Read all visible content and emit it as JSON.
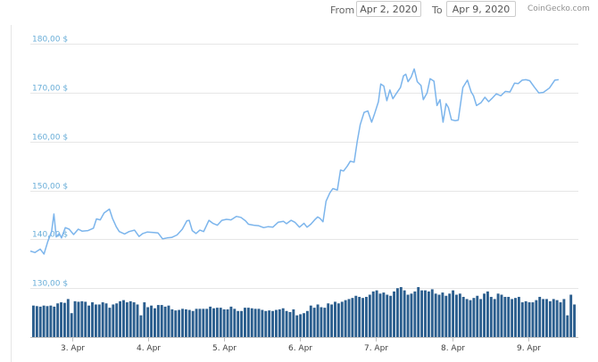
{
  "range": {
    "from_label": "From",
    "from_value": "Apr 2, 2020",
    "to_label": "To",
    "to_value": "Apr 9, 2020"
  },
  "credit": "CoinGecko.com",
  "colors": {
    "price_line": "#7cb5ec",
    "volume_bar": "#2b5e8e",
    "grid": "#e6e6e6",
    "y_label": "#6aaed8"
  },
  "chart_data": {
    "type": "line",
    "title": "",
    "xlabel": "",
    "ylabel": "",
    "x_range": [
      2.45,
      9.66
    ],
    "ylim": [
      120,
      185
    ],
    "y_ticks": [
      {
        "value": 130,
        "label": "130,00 $"
      },
      {
        "value": 140,
        "label": "140,00 $"
      },
      {
        "value": 150,
        "label": "150,00 $"
      },
      {
        "value": 160,
        "label": "160,00 $"
      },
      {
        "value": 170,
        "label": "170,00 $"
      },
      {
        "value": 180,
        "label": "180,00 $"
      }
    ],
    "x_ticks": [
      {
        "value": 3,
        "label": "3. Apr"
      },
      {
        "value": 4,
        "label": "4. Apr"
      },
      {
        "value": 5,
        "label": "5. Apr"
      },
      {
        "value": 6,
        "label": "6. Apr"
      },
      {
        "value": 7,
        "label": "7. Apr"
      },
      {
        "value": 8,
        "label": "8. Apr"
      },
      {
        "value": 9,
        "label": "9. Apr"
      }
    ],
    "grid": true,
    "series": [
      {
        "values": [
          [
            2.45,
            137.6
          ],
          [
            2.51,
            137.3
          ],
          [
            2.58,
            138.0
          ],
          [
            2.63,
            137.0
          ],
          [
            2.68,
            139.6
          ],
          [
            2.73,
            141.6
          ],
          [
            2.76,
            145.2
          ],
          [
            2.79,
            140.5
          ],
          [
            2.83,
            141.2
          ],
          [
            2.86,
            140.3
          ],
          [
            2.91,
            142.4
          ],
          [
            2.96,
            142.1
          ],
          [
            3.02,
            141.0
          ],
          [
            3.08,
            142.1
          ],
          [
            3.13,
            141.7
          ],
          [
            3.21,
            141.8
          ],
          [
            3.28,
            142.3
          ],
          [
            3.32,
            144.2
          ],
          [
            3.37,
            144.0
          ],
          [
            3.42,
            145.4
          ],
          [
            3.49,
            146.2
          ],
          [
            3.53,
            144.3
          ],
          [
            3.58,
            142.6
          ],
          [
            3.62,
            141.6
          ],
          [
            3.69,
            141.1
          ],
          [
            3.75,
            141.6
          ],
          [
            3.82,
            141.9
          ],
          [
            3.88,
            140.6
          ],
          [
            3.93,
            141.2
          ],
          [
            3.99,
            141.5
          ],
          [
            4.07,
            141.4
          ],
          [
            4.13,
            141.3
          ],
          [
            4.19,
            140.1
          ],
          [
            4.25,
            140.3
          ],
          [
            4.31,
            140.4
          ],
          [
            4.38,
            140.9
          ],
          [
            4.45,
            142.1
          ],
          [
            4.51,
            143.8
          ],
          [
            4.54,
            143.9
          ],
          [
            4.58,
            141.8
          ],
          [
            4.63,
            141.2
          ],
          [
            4.68,
            141.9
          ],
          [
            4.73,
            141.6
          ],
          [
            4.8,
            143.9
          ],
          [
            4.85,
            143.3
          ],
          [
            4.91,
            142.9
          ],
          [
            4.97,
            143.9
          ],
          [
            5.03,
            144.1
          ],
          [
            5.09,
            144.0
          ],
          [
            5.16,
            144.7
          ],
          [
            5.22,
            144.5
          ],
          [
            5.28,
            143.8
          ],
          [
            5.32,
            143.1
          ],
          [
            5.39,
            142.9
          ],
          [
            5.45,
            142.8
          ],
          [
            5.52,
            142.4
          ],
          [
            5.58,
            142.6
          ],
          [
            5.64,
            142.5
          ],
          [
            5.71,
            143.5
          ],
          [
            5.78,
            143.7
          ],
          [
            5.82,
            143.2
          ],
          [
            5.88,
            143.9
          ],
          [
            5.93,
            143.5
          ],
          [
            5.99,
            142.5
          ],
          [
            6.05,
            143.3
          ],
          [
            6.09,
            142.5
          ],
          [
            6.14,
            143.1
          ],
          [
            6.19,
            144.0
          ],
          [
            6.23,
            144.6
          ],
          [
            6.26,
            144.3
          ],
          [
            6.3,
            143.6
          ],
          [
            6.34,
            147.8
          ],
          [
            6.39,
            149.5
          ],
          [
            6.43,
            150.4
          ],
          [
            6.49,
            150.1
          ],
          [
            6.53,
            154.2
          ],
          [
            6.57,
            154.0
          ],
          [
            6.62,
            155.0
          ],
          [
            6.66,
            156.0
          ],
          [
            6.71,
            155.8
          ],
          [
            6.75,
            160.0
          ],
          [
            6.79,
            163.5
          ],
          [
            6.84,
            166.0
          ],
          [
            6.89,
            166.3
          ],
          [
            6.94,
            164.0
          ],
          [
            6.98,
            165.8
          ],
          [
            7.03,
            168.2
          ],
          [
            7.06,
            171.8
          ],
          [
            7.1,
            171.4
          ],
          [
            7.14,
            168.4
          ],
          [
            7.18,
            170.6
          ],
          [
            7.22,
            168.8
          ],
          [
            7.27,
            170.0
          ],
          [
            7.32,
            171.1
          ],
          [
            7.36,
            173.5
          ],
          [
            7.39,
            173.8
          ],
          [
            7.42,
            172.3
          ],
          [
            7.46,
            173.2
          ],
          [
            7.5,
            174.9
          ],
          [
            7.54,
            172.3
          ],
          [
            7.59,
            171.5
          ],
          [
            7.62,
            168.6
          ],
          [
            7.67,
            170.0
          ],
          [
            7.71,
            172.9
          ],
          [
            7.76,
            172.4
          ],
          [
            7.8,
            167.4
          ],
          [
            7.84,
            168.6
          ],
          [
            7.88,
            164.0
          ],
          [
            7.92,
            167.8
          ],
          [
            7.95,
            167.0
          ],
          [
            7.99,
            164.5
          ],
          [
            8.04,
            164.3
          ],
          [
            8.08,
            164.4
          ],
          [
            8.14,
            171.1
          ],
          [
            8.2,
            172.6
          ],
          [
            8.25,
            170.2
          ],
          [
            8.28,
            169.4
          ],
          [
            8.32,
            167.4
          ],
          [
            8.38,
            168.0
          ],
          [
            8.43,
            169.1
          ],
          [
            8.48,
            168.2
          ],
          [
            8.52,
            168.8
          ],
          [
            8.58,
            169.8
          ],
          [
            8.64,
            169.4
          ],
          [
            8.7,
            170.3
          ],
          [
            8.76,
            170.2
          ],
          [
            8.82,
            172.0
          ],
          [
            8.87,
            171.9
          ],
          [
            8.92,
            172.6
          ],
          [
            8.97,
            172.7
          ],
          [
            9.02,
            172.5
          ],
          [
            9.08,
            171.2
          ],
          [
            9.14,
            170.0
          ],
          [
            9.2,
            170.1
          ],
          [
            9.28,
            171.0
          ],
          [
            9.35,
            172.6
          ],
          [
            9.4,
            172.7
          ]
        ]
      }
    ],
    "volume": {
      "type": "bar",
      "values": [
        58,
        57,
        56,
        58,
        57,
        58,
        56,
        62,
        64,
        63,
        70,
        44,
        66,
        65,
        66,
        65,
        58,
        64,
        60,
        60,
        64,
        62,
        54,
        60,
        62,
        66,
        68,
        64,
        66,
        64,
        60,
        40,
        64,
        55,
        58,
        53,
        59,
        59,
        56,
        58,
        51,
        49,
        50,
        52,
        51,
        50,
        48,
        52,
        52,
        52,
        52,
        56,
        53,
        54,
        54,
        51,
        51,
        56,
        52,
        48,
        48,
        54,
        54,
        53,
        52,
        52,
        50,
        48,
        49,
        48,
        50,
        51,
        53,
        48,
        46,
        51,
        40,
        42,
        44,
        48,
        58,
        54,
        60,
        55,
        54,
        62,
        60,
        65,
        62,
        65,
        68,
        70,
        72,
        76,
        74,
        72,
        74,
        78,
        84,
        86,
        80,
        82,
        78,
        76,
        84,
        90,
        92,
        86,
        78,
        80,
        84,
        92,
        86,
        86,
        84,
        88,
        80,
        78,
        82,
        76,
        80,
        86,
        78,
        80,
        74,
        70,
        68,
        72,
        76,
        70,
        80,
        84,
        74,
        70,
        80,
        78,
        74,
        74,
        70,
        72,
        74,
        64,
        66,
        64,
        64,
        68,
        74,
        70,
        70,
        66,
        70,
        68,
        64,
        70,
        40,
        78,
        60
      ]
    }
  }
}
